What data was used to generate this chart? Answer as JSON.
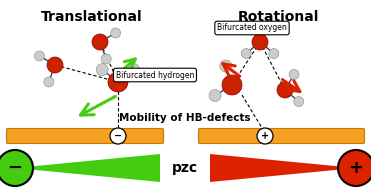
{
  "title_left": "Translational",
  "title_right": "Rotational",
  "label_bifH": "Bifurcated hydrogen",
  "label_bifO": "Bifurcated oxygen",
  "label_mobility": "Mobility of HB-defects",
  "label_pzc": "pzc",
  "color_green": "#44cc11",
  "color_red": "#dd2200",
  "color_orange": "#f5a020",
  "color_oxygen": "#cc2200",
  "color_hydrogen": "#cccccc",
  "color_bond": "#444444",
  "bg_color": "#ffffff",
  "fig_width": 3.71,
  "fig_height": 1.89,
  "dpi": 100
}
